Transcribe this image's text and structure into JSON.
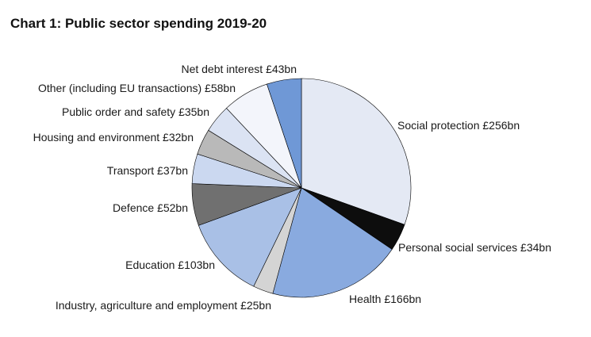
{
  "chart_data": {
    "type": "pie",
    "title": "Chart 1: Public sector spending 2019-20",
    "unit": "£bn",
    "slices": [
      {
        "label": "Social protection £256bn",
        "value": 256,
        "color": "#e4e9f4"
      },
      {
        "label": "Personal social services £34bn",
        "value": 34,
        "color": "#0d0d0d"
      },
      {
        "label": "Health £166bn",
        "value": 166,
        "color": "#89aadf"
      },
      {
        "label": "Industry, agriculture and employment £25bn",
        "value": 25,
        "color": "#d4d4d4"
      },
      {
        "label": "Education £103bn",
        "value": 103,
        "color": "#a9c0e6"
      },
      {
        "label": "Defence £52bn",
        "value": 52,
        "color": "#707070"
      },
      {
        "label": "Transport £37bn",
        "value": 37,
        "color": "#cbd8f0"
      },
      {
        "label": "Housing and environment £32bn",
        "value": 32,
        "color": "#b9b9b9"
      },
      {
        "label": "Public order and safety £35bn",
        "value": 35,
        "color": "#dbe3f3"
      },
      {
        "label": "Other (including EU transactions) £58bn",
        "value": 58,
        "color": "#f3f5fb"
      },
      {
        "label": "Net debt interest £43bn",
        "value": 43,
        "color": "#6f98d6"
      }
    ]
  }
}
